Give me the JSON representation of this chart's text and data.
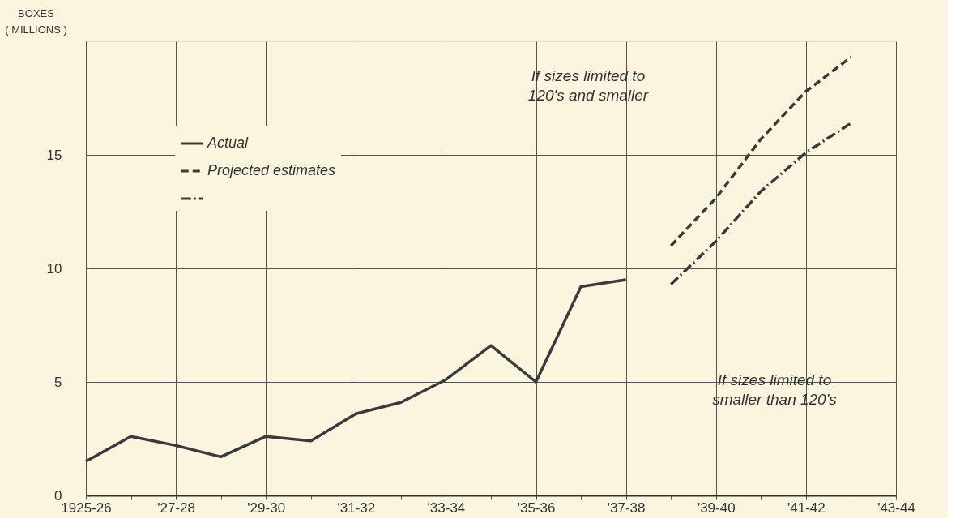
{
  "chart_data": {
    "type": "line",
    "ylabel": "BOXES\n( MILLIONS )",
    "categories": [
      "1925-26",
      null,
      "'27-28",
      null,
      "'29-30",
      null,
      "'31-32",
      null,
      "'33-34",
      null,
      "'35-36",
      null,
      "'37-38",
      null,
      "'39-40",
      null,
      "'41-42",
      null,
      "'43-44"
    ],
    "series": [
      {
        "name": "Actual",
        "color": "#3a3a3a",
        "line_style": "solid",
        "values": [
          1.5,
          2.6,
          2.2,
          1.7,
          2.6,
          2.4,
          3.6,
          4.1,
          5.1,
          6.6,
          5.0,
          9.2,
          9.5,
          null,
          null,
          null,
          null,
          null,
          null
        ]
      },
      {
        "name": "Projected estimates",
        "color": "#3a3a3a",
        "line_style": "dashed",
        "values": [
          null,
          null,
          null,
          null,
          null,
          null,
          null,
          null,
          null,
          null,
          null,
          null,
          null,
          11.0,
          13.1,
          15.7,
          17.8,
          19.3,
          null
        ]
      },
      {
        "color": "#3a3a3a",
        "line_style": "dashdot",
        "values": [
          null,
          null,
          null,
          null,
          null,
          null,
          null,
          null,
          null,
          null,
          null,
          null,
          null,
          9.3,
          11.2,
          13.4,
          15.1,
          16.4,
          null
        ]
      }
    ],
    "ylim": [
      0,
      20
    ],
    "yticks": [
      0,
      5,
      10,
      15
    ],
    "grid": true,
    "legend": "top left",
    "annotations": [
      "If sizes limited to\n120's and smaller",
      "If sizes limited to\nsmaller than 120's"
    ]
  }
}
